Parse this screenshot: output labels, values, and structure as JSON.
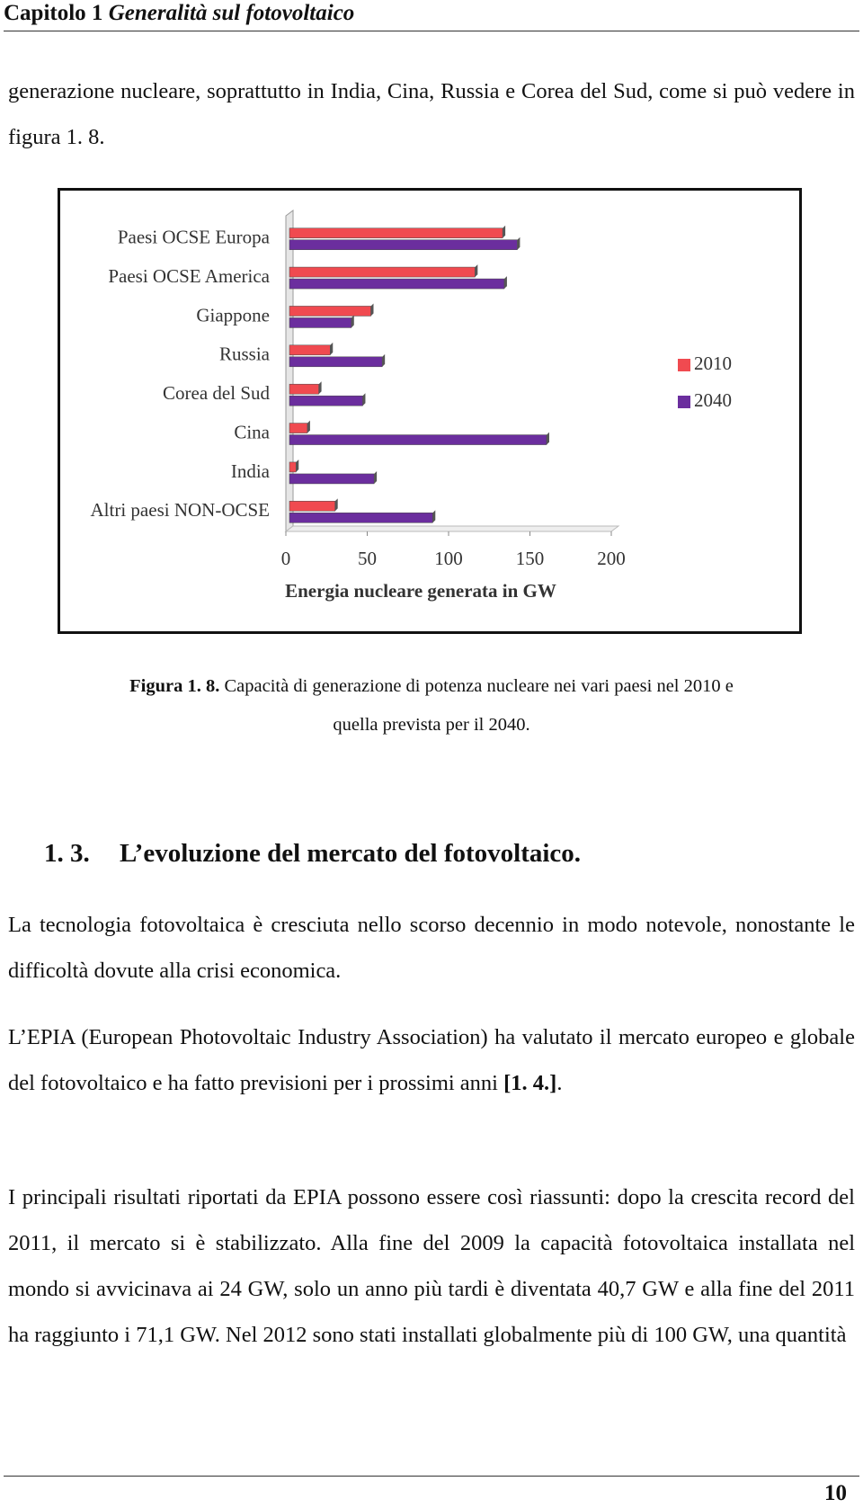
{
  "header": {
    "chapter": "Capitolo 1",
    "title": "Generalità sul fotovoltaico"
  },
  "paragraphs": [
    {
      "text": "generazione nucleare, soprattutto in India, Cina, Russia e Corea del Sud, come si può vedere in figura 1. 8."
    },
    {
      "text": "La tecnologia fotovoltaica è cresciuta nello scorso decennio in modo notevole, nonostante le difficoltà dovute alla crisi economica."
    },
    {
      "text": "L’EPIA (European Photovoltaic Industry Association) ha valutato il mercato europeo e globale del fotovoltaico e ha fatto previsioni per i prossimi anni",
      "ref": "[1. 4.]",
      "end": "."
    },
    {
      "text": "I principali risultati riportati da EPIA possono essere così riassunti: dopo la crescita record del 2011, il mercato si è stabilizzato. Alla fine del 2009 la capacità fotovoltaica installata nel mondo si avvicinava ai 24 GW, solo un anno più tardi è diventata 40,7 GW e alla fine del 2011 ha raggiunto i 71,1 GW. Nel 2012 sono stati installati globalmente più di 100 GW, una quantità"
    }
  ],
  "chart_data": {
    "type": "hbar",
    "x_label": "Energia nucleare generata in GW",
    "categories": [
      "Paesi OCSE Europa",
      "Paesi OCSE America",
      "Giappone",
      "Russia",
      "Corea del Sud",
      "Cina",
      "India",
      "Altri paesi NON-OCSE"
    ],
    "series": [
      {
        "name": "2010",
        "color": "#f04a50",
        "values": [
          131,
          114,
          50,
          25,
          18,
          11,
          4,
          28
        ]
      },
      {
        "name": "2040",
        "color": "#6b2e9e",
        "values": [
          140,
          132,
          38,
          57,
          45,
          158,
          52,
          88
        ]
      }
    ],
    "xlim": [
      0,
      200
    ],
    "xticks": [
      0,
      50,
      100,
      150,
      200
    ],
    "legend": "right"
  },
  "caption": {
    "label": "Figura 1. 8.",
    "text": "Capacità di generazione di potenza nucleare nei vari paesi nel 2010 e quella prevista per il 2040."
  },
  "section": {
    "number": "1. 3.",
    "title": "L’evoluzione del mercato del fotovoltaico."
  },
  "page_number": "10"
}
